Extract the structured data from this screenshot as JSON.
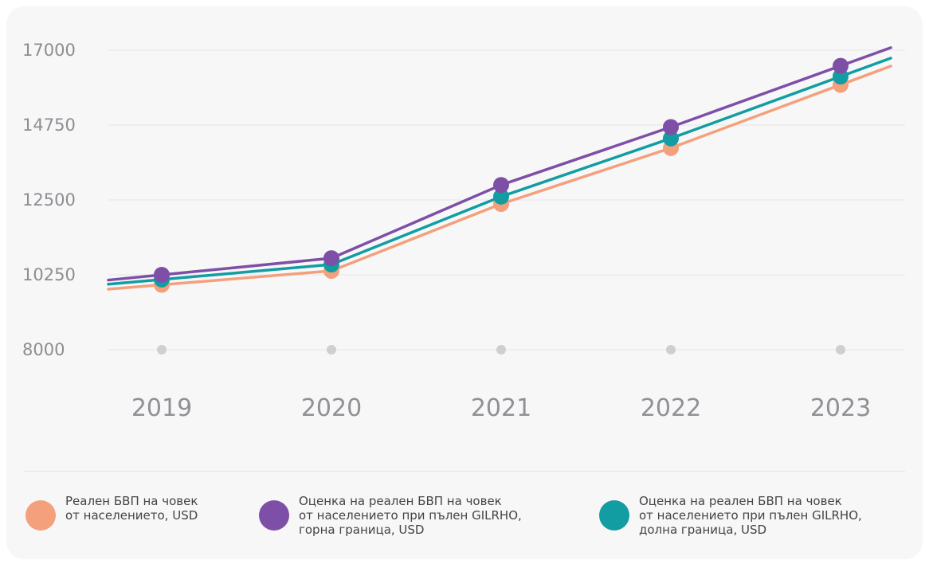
{
  "chart_data": {
    "type": "line",
    "categories": [
      "2019",
      "2020",
      "2021",
      "2022",
      "2023"
    ],
    "y_ticks": [
      "17000",
      "14750",
      "12500",
      "10250",
      "8000"
    ],
    "ylim": [
      8000,
      17000
    ],
    "grid": true,
    "legend_position": "bottom",
    "series": [
      {
        "key": "s1",
        "name": "Реален БВП на човек\nот населението, USD",
        "color": "#f4a07c",
        "values": [
          9950,
          10370,
          12380,
          14060,
          15960
        ]
      },
      {
        "key": "s2",
        "name": "Оценка на реален БВП на човек\nот населението при пълен GILRHO,\nгорна граница, USD",
        "color": "#7e4fa6",
        "values": [
          10250,
          10750,
          12950,
          14690,
          16530
        ]
      },
      {
        "key": "s3",
        "name": "Оценка на реален БВП на човек\nот населението при пълен GILRHO,\nдолна граница, USD",
        "color": "#119da1",
        "values": [
          10110,
          10560,
          12600,
          14350,
          16210
        ]
      }
    ]
  }
}
